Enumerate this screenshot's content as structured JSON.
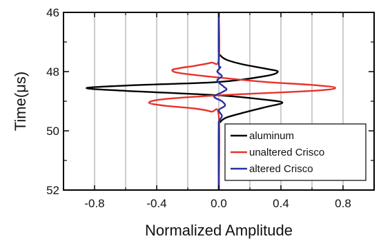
{
  "chart_data": {
    "type": "line",
    "xlabel": "Normalized Amplitude",
    "ylabel": "Time(μs)",
    "xlim": [
      -1.0,
      1.0
    ],
    "ylim": [
      52,
      46
    ],
    "y_inverted": true,
    "xticks": [
      -0.8,
      -0.4,
      0.0,
      0.4,
      0.8
    ],
    "xtick_labels": [
      "-0.8",
      "-0.4",
      "0.0",
      "0.4",
      "0.8"
    ],
    "yticks": [
      46,
      48,
      50,
      52
    ],
    "ytick_labels": [
      "46",
      "48",
      "50",
      "52"
    ],
    "grid": "vertical",
    "legend_position": "lower-right",
    "series": [
      {
        "name": "aluminum",
        "color": "#000000",
        "points": [
          [
            0,
            46.0
          ],
          [
            0,
            47.3
          ],
          [
            0.01,
            47.45
          ],
          [
            0.05,
            47.6
          ],
          [
            0.15,
            47.75
          ],
          [
            0.3,
            47.9
          ],
          [
            0.38,
            48.0
          ],
          [
            0.3,
            48.15
          ],
          [
            0.0,
            48.35
          ],
          [
            -0.5,
            48.45
          ],
          [
            -0.85,
            48.55
          ],
          [
            -0.6,
            48.65
          ],
          [
            0.0,
            48.8
          ],
          [
            0.3,
            48.95
          ],
          [
            0.41,
            49.05
          ],
          [
            0.3,
            49.2
          ],
          [
            0.15,
            49.4
          ],
          [
            0.05,
            49.55
          ],
          [
            0.01,
            49.7
          ],
          [
            0,
            49.9
          ],
          [
            0,
            52.0
          ]
        ]
      },
      {
        "name": "unaltered Crisco",
        "color": "#e8322a",
        "points": [
          [
            0,
            46.0
          ],
          [
            0,
            47.6
          ],
          [
            -0.05,
            47.7
          ],
          [
            -0.15,
            47.8
          ],
          [
            -0.25,
            47.88
          ],
          [
            -0.3,
            47.95
          ],
          [
            -0.25,
            48.05
          ],
          [
            0.0,
            48.2
          ],
          [
            0.3,
            48.35
          ],
          [
            0.6,
            48.45
          ],
          [
            0.75,
            48.55
          ],
          [
            0.6,
            48.65
          ],
          [
            0.0,
            48.8
          ],
          [
            -0.35,
            48.93
          ],
          [
            -0.45,
            49.05
          ],
          [
            -0.35,
            49.15
          ],
          [
            -0.15,
            49.25
          ],
          [
            -0.05,
            49.35
          ],
          [
            0,
            49.5
          ],
          [
            0,
            52.0
          ]
        ]
      },
      {
        "name": "altered Crisco",
        "color": "#2a2f9a",
        "points": [
          [
            0,
            46.0
          ],
          [
            0,
            47.7
          ],
          [
            0.01,
            47.85
          ],
          [
            -0.01,
            48.0
          ],
          [
            0.02,
            48.15
          ],
          [
            -0.01,
            48.3
          ],
          [
            0.03,
            48.5
          ],
          [
            0.05,
            48.6
          ],
          [
            0.02,
            48.7
          ],
          [
            -0.03,
            48.85
          ],
          [
            0.02,
            49.0
          ],
          [
            0.04,
            49.15
          ],
          [
            0.0,
            49.3
          ],
          [
            0.02,
            49.5
          ],
          [
            0.0,
            49.7
          ],
          [
            0.0,
            50.0
          ],
          [
            0.0,
            52.0
          ]
        ]
      }
    ]
  }
}
